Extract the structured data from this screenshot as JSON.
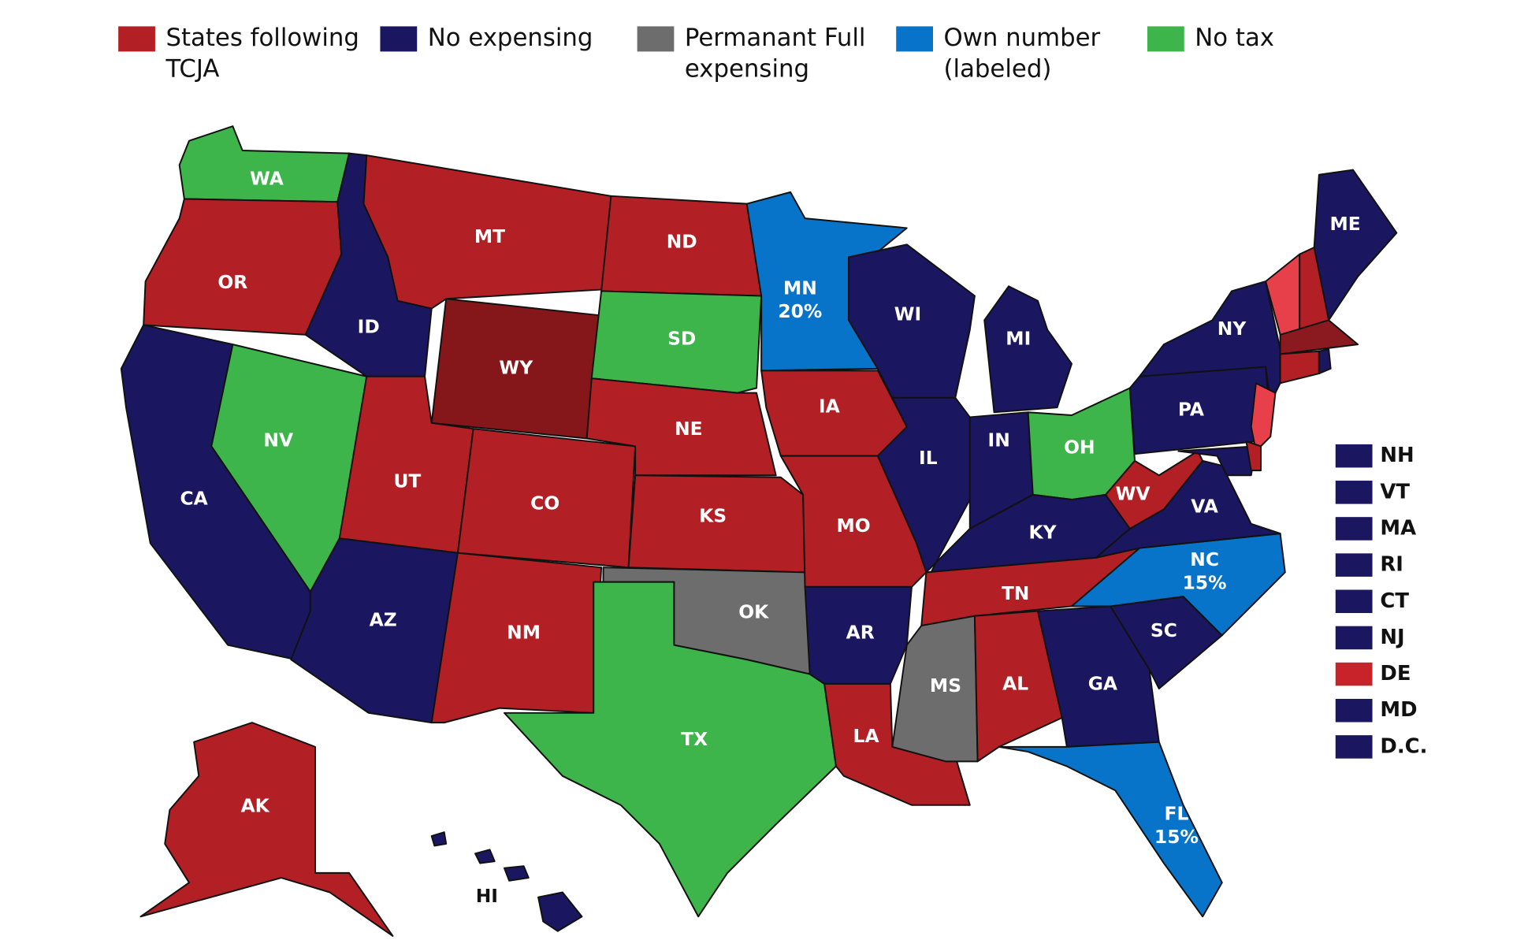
{
  "legend": [
    {
      "label": [
        "States following",
        "TCJA"
      ],
      "fill": "#b21f24"
    },
    {
      "label": [
        "No expensing"
      ],
      "fill": "#1a1660"
    },
    {
      "label": [
        "Permanant Full",
        "expensing"
      ],
      "fill": "#6d6d6d"
    },
    {
      "label": [
        "Own number",
        "(labeled)"
      ],
      "fill": "#0874c9"
    },
    {
      "label": [
        "No tax"
      ],
      "fill": "#3db54a"
    }
  ],
  "states": [
    {
      "label": "WA",
      "fill": "#3db54a"
    },
    {
      "label": "OR",
      "fill": "#b21f24"
    },
    {
      "label": "CA",
      "fill": "#1a1660"
    },
    {
      "label": "NV",
      "fill": "#3db54a"
    },
    {
      "label": "ID",
      "fill": "#1a1660"
    },
    {
      "label": "MT",
      "fill": "#b21f24"
    },
    {
      "label": "WY",
      "fill": "#85161a"
    },
    {
      "label": "UT",
      "fill": "#b21f24"
    },
    {
      "label": "AZ",
      "fill": "#1a1660"
    },
    {
      "label": "CO",
      "fill": "#b21f24"
    },
    {
      "label": "NM",
      "fill": "#b21f24"
    },
    {
      "label": "ND",
      "fill": "#b21f24"
    },
    {
      "label": "SD",
      "fill": "#3db54a"
    },
    {
      "label": "NE",
      "fill": "#b21f24"
    },
    {
      "label": "KS",
      "fill": "#b21f24"
    },
    {
      "label": "OK",
      "fill": "#6d6d6d"
    },
    {
      "label": "TX",
      "fill": "#3db54a"
    },
    {
      "label": "MN",
      "note": "20%",
      "fill": "#0874c9"
    },
    {
      "label": "IA",
      "fill": "#b21f24"
    },
    {
      "label": "MO",
      "fill": "#b21f24"
    },
    {
      "label": "AR",
      "fill": "#1a1660"
    },
    {
      "label": "LA",
      "fill": "#b21f24"
    },
    {
      "label": "WI",
      "fill": "#1a1660"
    },
    {
      "label": "IL",
      "fill": "#1a1660"
    },
    {
      "label": "MI",
      "fill": "#1a1660"
    },
    {
      "label": "IN",
      "fill": "#1a1660"
    },
    {
      "label": "OH",
      "fill": "#3db54a"
    },
    {
      "label": "KY",
      "fill": "#1a1660"
    },
    {
      "label": "TN",
      "fill": "#b21f24"
    },
    {
      "label": "MS",
      "fill": "#6d6d6d"
    },
    {
      "label": "AL",
      "fill": "#b21f24"
    },
    {
      "label": "GA",
      "fill": "#1a1660"
    },
    {
      "label": "FL",
      "note": "15%",
      "fill": "#0874c9"
    },
    {
      "label": "SC",
      "fill": "#1a1660"
    },
    {
      "label": "NC",
      "note": "15%",
      "fill": "#0874c9"
    },
    {
      "label": "VA",
      "fill": "#1a1660"
    },
    {
      "label": "WV",
      "fill": "#b21f24"
    },
    {
      "label": "PA",
      "fill": "#1a1660"
    },
    {
      "label": "NY",
      "fill": "#1a1660"
    },
    {
      "label": "ME",
      "fill": "#1a1660"
    },
    {
      "label": "AK",
      "fill": "#b21f24"
    },
    {
      "label": "HI",
      "fill": "#1a1660"
    },
    {
      "fill": "#e8404a"
    },
    {
      "fill": "#1a1660"
    },
    {
      "fill": "#b21f24"
    },
    {
      "fill": "#e8404a"
    },
    {
      "fill": "#b21f24"
    },
    {
      "fill": "#8b1a20"
    },
    {
      "fill": "#b21f24"
    },
    {
      "fill": "#1a1660"
    }
  ],
  "small_states": [
    {
      "label": "NH",
      "fill": "#1a1660"
    },
    {
      "label": "VT",
      "fill": "#1a1660"
    },
    {
      "label": "MA",
      "fill": "#1a1660"
    },
    {
      "label": "RI",
      "fill": "#1a1660"
    },
    {
      "label": "CT",
      "fill": "#1a1660"
    },
    {
      "label": "NJ",
      "fill": "#1a1660"
    },
    {
      "label": "DE",
      "fill": "#c8232b"
    },
    {
      "label": "MD",
      "fill": "#1a1660"
    },
    {
      "label": "D.C.",
      "fill": "#1a1660"
    }
  ]
}
